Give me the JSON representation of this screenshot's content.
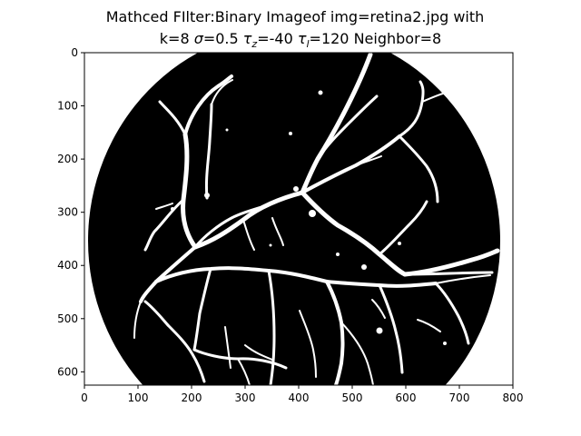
{
  "figure": {
    "title_line1": "Mathced FIlter:Binary Imageof img=retina2.jpg with",
    "title_line2_parts": {
      "k": "k=8 ",
      "sigma_sym": "σ",
      "sigma_val": "=0.5 ",
      "tau_z_sym": "τ",
      "tau_z_sub": "z",
      "tau_z_val": "=-40 ",
      "tau_l_sym": "τ",
      "tau_l_sub": "l",
      "tau_l_val": "=120 Neighbor=8"
    }
  },
  "axes": {
    "xlim": [
      0,
      800
    ],
    "ylim": [
      625,
      0
    ],
    "x_ticks": [
      "0",
      "100",
      "200",
      "300",
      "400",
      "500",
      "600",
      "700",
      "800"
    ],
    "y_ticks": [
      "0",
      "100",
      "200",
      "300",
      "400",
      "500",
      "600"
    ]
  },
  "image": {
    "description_colors": {
      "background": "#000000",
      "vessels": "#ffffff",
      "outside": "#ffffff"
    }
  }
}
